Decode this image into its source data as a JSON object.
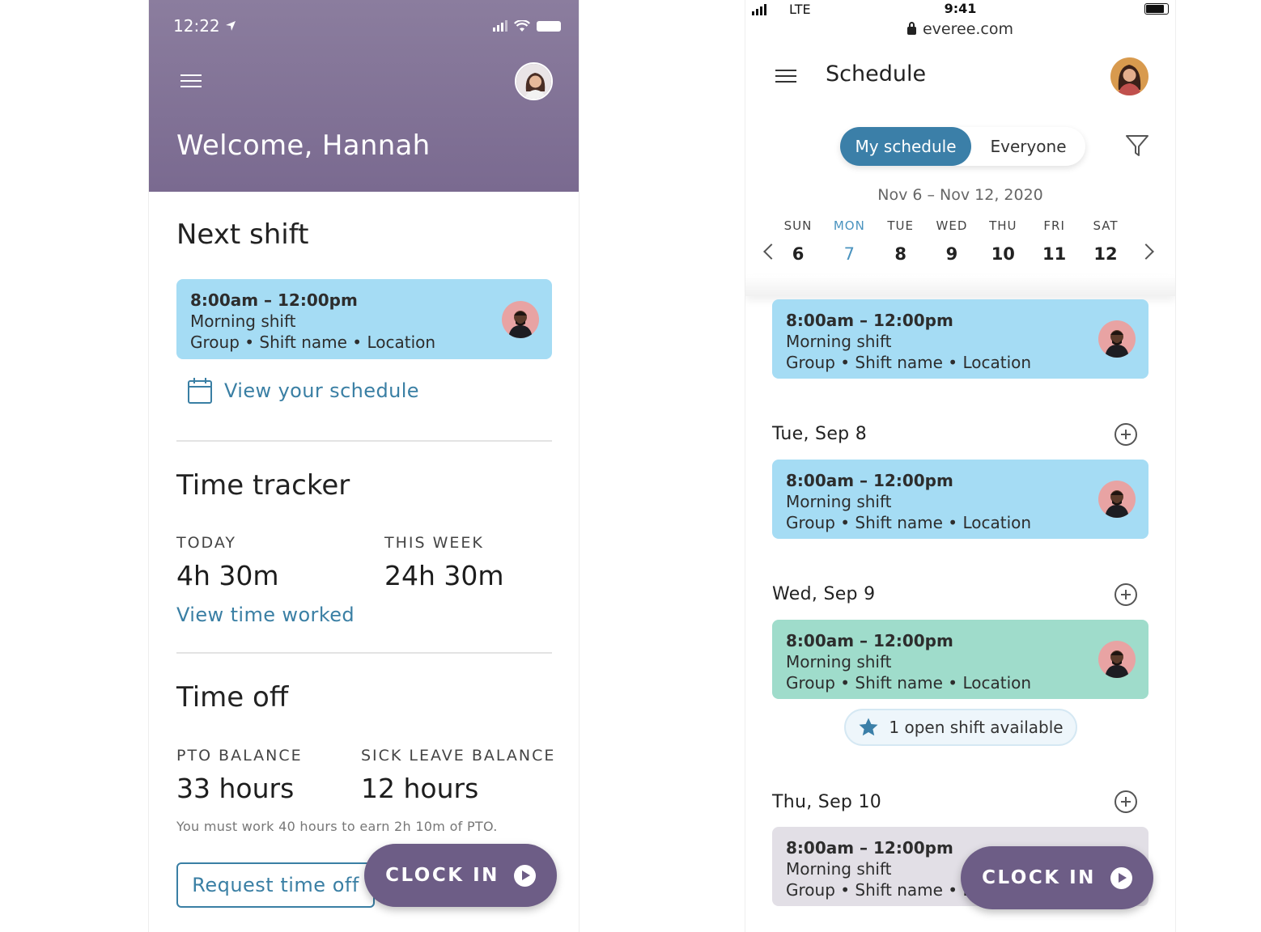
{
  "left": {
    "status_time": "12:22",
    "welcome": "Welcome, Hannah",
    "next_shift": {
      "title": "Next shift",
      "card": {
        "time": "8:00am – 12:00pm",
        "name": "Morning shift",
        "details": "Group • Shift name • Location"
      },
      "link": "View your schedule"
    },
    "time_tracker": {
      "title": "Time tracker",
      "today_label": "TODAY",
      "today_value": "4h 30m",
      "week_label": "THIS WEEK",
      "week_value": "24h 30m",
      "link": "View time worked"
    },
    "time_off": {
      "title": "Time off",
      "pto_label": "PTO BALANCE",
      "pto_value": "33 hours",
      "sick_label": "SICK LEAVE BALANCE",
      "sick_value": "12 hours",
      "note": "You must work 40 hours to earn 2h 10m of PTO.",
      "request_button": "Request time off"
    },
    "clock_in": "CLOCK IN"
  },
  "right": {
    "status": {
      "carrier": "LTE",
      "time": "9:41"
    },
    "url": "everee.com",
    "title": "Schedule",
    "segments": {
      "active": "My schedule",
      "inactive": "Everyone"
    },
    "date_range": "Nov 6 – Nov 12, 2020",
    "week": [
      {
        "dn": "SUN",
        "dd": "6"
      },
      {
        "dn": "MON",
        "dd": "7"
      },
      {
        "dn": "TUE",
        "dd": "8"
      },
      {
        "dn": "WED",
        "dd": "9"
      },
      {
        "dn": "THU",
        "dd": "10"
      },
      {
        "dn": "FRI",
        "dd": "11"
      },
      {
        "dn": "SAT",
        "dd": "12"
      }
    ],
    "shifts": [
      {
        "time": "8:00am – 12:00pm",
        "name": "Morning shift",
        "details": "Group • Shift name • Location"
      },
      {
        "time": "8:00am – 12:00pm",
        "name": "Morning shift",
        "details": "Group • Shift name • Location"
      },
      {
        "time": "8:00am – 12:00pm",
        "name": "Morning shift",
        "details": "Group • Shift name • Location"
      },
      {
        "time": "8:00am – 12:00pm",
        "name": "Morning shift",
        "details": "Group • Shift name • L"
      }
    ],
    "days": [
      "Tue, Sep 8",
      "Wed, Sep 9",
      "Thu, Sep 10"
    ],
    "open_shift": "1 open shift available",
    "clock_in": "CLOCK IN"
  },
  "colors": {
    "header_purple": "#7a6a90",
    "clock_button": "#6d5d86",
    "link_blue": "#3a7fa4",
    "shift_blue": "#a5dcf4",
    "shift_green": "#9fdccb",
    "shift_grey": "#e2dfe6",
    "active_day": "#4a93bf"
  }
}
